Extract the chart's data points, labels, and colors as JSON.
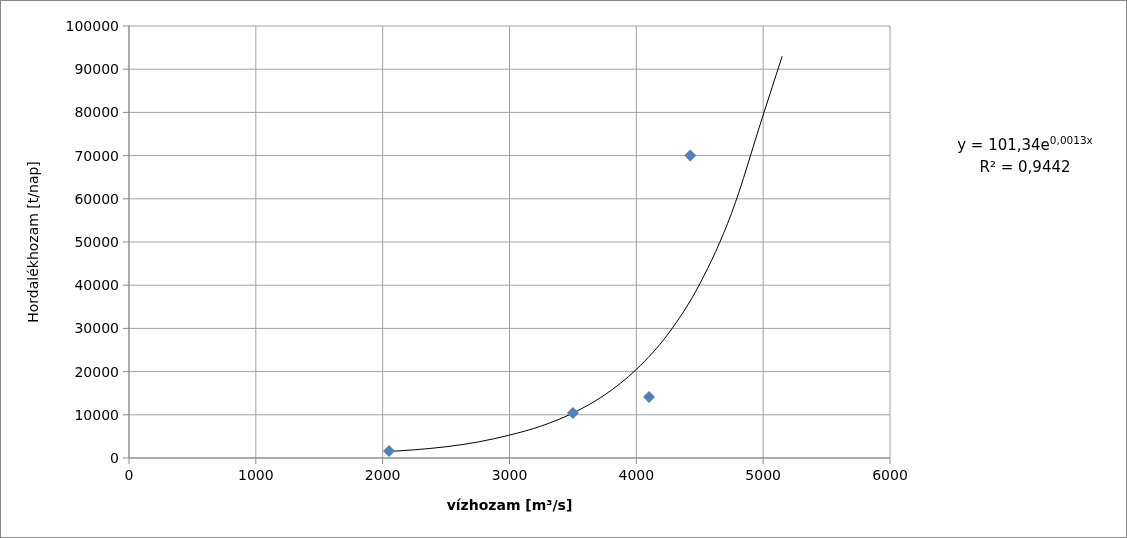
{
  "chart_data": {
    "type": "scatter",
    "xlabel": "vízhozam [m³/s]",
    "ylabel": "Hordalékhozam  [t/nap]",
    "xlim": [
      0,
      6000
    ],
    "xticks": [
      0,
      1000,
      2000,
      3000,
      4000,
      5000,
      6000
    ],
    "ylim": [
      0,
      100000
    ],
    "yticks": [
      0,
      10000,
      20000,
      30000,
      40000,
      50000,
      60000,
      70000,
      80000,
      90000,
      100000
    ],
    "grid": true,
    "annotations": [
      "y = 101,34e$^{0,0013x}$",
      "R² = 0,9442"
    ],
    "series": [
      {
        "color": "#4f81bd",
        "marker": "diamond",
        "x": [
          2050,
          3500,
          4100,
          4425
        ],
        "values": [
          1600,
          10400,
          14100,
          70000
        ]
      },
      {
        "type": "line",
        "color": "#000000",
        "marker": "none",
        "line_style": "solid",
        "x": [
          2050,
          2250,
          2500,
          2750,
          3000,
          3250,
          3500,
          3750,
          4000,
          4250,
          4500,
          4750,
          5000,
          5150
        ],
        "values": [
          1500,
          1900,
          2600,
          3700,
          5300,
          7400,
          10400,
          14600,
          20500,
          28700,
          40300,
          56600,
          79400,
          93000
        ]
      }
    ]
  }
}
